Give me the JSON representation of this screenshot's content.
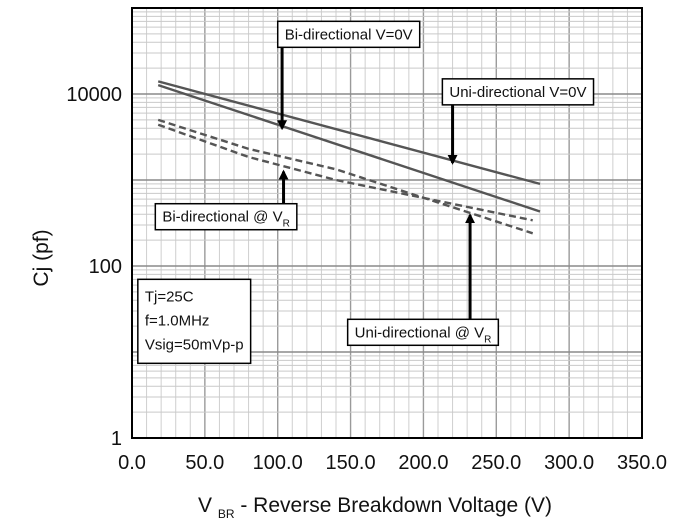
{
  "chart_data": {
    "type": "line",
    "xlabel": {
      "main": "V",
      "sub": "BR",
      "rest": " - Reverse Breakdown Voltage (V)"
    },
    "ylabel": "Cj (pf)",
    "xlim": [
      0,
      350
    ],
    "ylim": [
      1,
      100000
    ],
    "y_scale": "log",
    "x_ticks": [
      {
        "v": 0,
        "label": "0.0"
      },
      {
        "v": 50,
        "label": "50.0"
      },
      {
        "v": 100,
        "label": "100.0"
      },
      {
        "v": 150,
        "label": "150.0"
      },
      {
        "v": 200,
        "label": "200.0"
      },
      {
        "v": 250,
        "label": "250.0"
      },
      {
        "v": 300,
        "label": "300.0"
      },
      {
        "v": 350,
        "label": "350.0"
      }
    ],
    "y_ticks": [
      {
        "v": 1,
        "label": "1"
      },
      {
        "v": 100,
        "label": "100"
      },
      {
        "v": 10000,
        "label": "10000"
      }
    ],
    "grid": true,
    "series": [
      {
        "name": "Bi-directional V=0V",
        "style": "solid",
        "color": "#555555",
        "x": [
          18,
          280
        ],
        "y": [
          12700,
          430
        ]
      },
      {
        "name": "Uni-directional V=0V",
        "style": "solid",
        "color": "#555555",
        "x": [
          18,
          280
        ],
        "y": [
          14000,
          900
        ]
      },
      {
        "name": "Bi-directional @ V_R",
        "style": "dashed",
        "color": "#555555",
        "x": [
          18,
          80,
          140,
          275
        ],
        "y": [
          5000,
          2300,
          1330,
          240
        ]
      },
      {
        "name": "Uni-directional @ V_R",
        "style": "dashed",
        "color": "#555555",
        "x": [
          18,
          80,
          140,
          275
        ],
        "y": [
          4400,
          1850,
          1000,
          340
        ]
      }
    ],
    "annotations": [
      {
        "id": "bi-v0",
        "main": "Bi-directional V=0V",
        "sub": "",
        "box": {
          "x": 100,
          "y": 70000
        },
        "arrow_to": {
          "x": 103,
          "y": 4000
        }
      },
      {
        "id": "uni-v0",
        "main": "Uni-directional V=0V",
        "sub": "",
        "box": {
          "x": 213,
          "y": 15000
        },
        "arrow_to": {
          "x": 220,
          "y": 1580
        }
      },
      {
        "id": "bi-vr",
        "main": "Bi-directional @ V",
        "sub": "R",
        "box": {
          "x": 16,
          "y": 530
        },
        "arrow_to": {
          "x": 104,
          "y": 1250
        }
      },
      {
        "id": "uni-vr",
        "main": "Uni-directional @ V",
        "sub": "R",
        "box": {
          "x": 148,
          "y": 24
        },
        "arrow_to": {
          "x": 232,
          "y": 390
        }
      }
    ],
    "conditions": [
      "Tj=25C",
      "f=1.0MHz",
      "Vsig=50mVp-p"
    ]
  }
}
